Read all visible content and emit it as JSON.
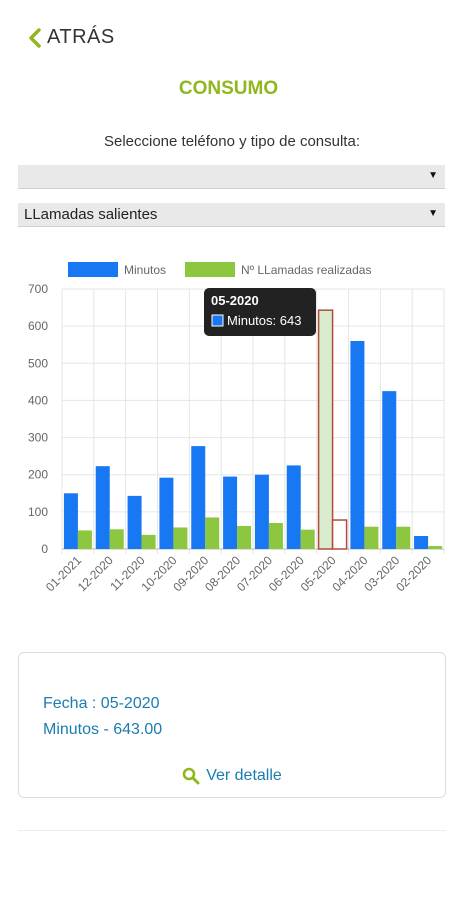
{
  "header": {
    "back_label": "ATRÁS",
    "title": "CONSUMO"
  },
  "form": {
    "prompt": "Seleccione teléfono y tipo de consulta:",
    "phone_select_value": "",
    "type_select_value": "LLamadas salientes"
  },
  "colors": {
    "accent": "#8fb81e",
    "minutos": "#1877f2",
    "llamadas": "#8dc63f",
    "link": "#1a7db0"
  },
  "icons": {
    "back": "chevron-left-icon",
    "dropdown": "triangle-down-icon",
    "detail": "search-icon"
  },
  "chart_data": {
    "type": "bar",
    "categories": [
      "01-2021",
      "12-2020",
      "11-2020",
      "10-2020",
      "09-2020",
      "08-2020",
      "07-2020",
      "06-2020",
      "05-2020",
      "04-2020",
      "03-2020",
      "02-2020"
    ],
    "series": [
      {
        "name": "Minutos",
        "values": [
          150,
          223,
          143,
          192,
          277,
          195,
          200,
          225,
          643,
          560,
          425,
          35
        ]
      },
      {
        "name": "Nº LLamadas realizadas",
        "values": [
          50,
          53,
          38,
          58,
          85,
          62,
          70,
          52,
          78,
          60,
          60,
          8
        ]
      }
    ],
    "ylim": [
      0,
      700
    ],
    "yticks": [
      0,
      100,
      200,
      300,
      400,
      500,
      600,
      700
    ],
    "grid": true,
    "legend": "top",
    "highlighted_category": "05-2020",
    "tooltip": {
      "title": "05-2020",
      "label": "Minutos: 643"
    }
  },
  "detail_card": {
    "fecha": "Fecha : 05-2020",
    "minutos": "Minutos - 643.00",
    "link_label": "Ver detalle"
  }
}
